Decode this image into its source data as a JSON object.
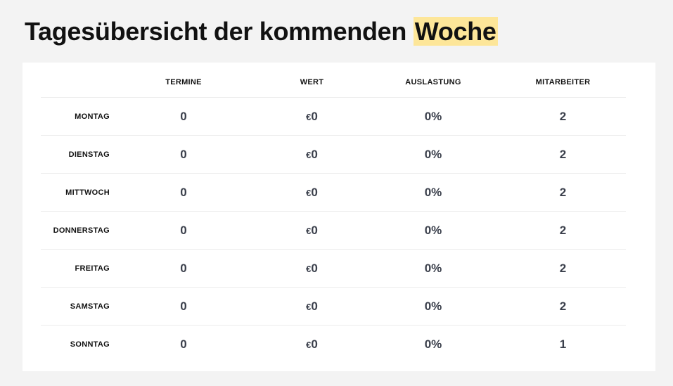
{
  "header": {
    "title_main": "Tagesübersicht der kommenden",
    "title_highlight": "Woche"
  },
  "columns": {
    "termine": "TERMINE",
    "wert": "WERT",
    "auslastung": "AUSLASTUNG",
    "mitarbeiter": "MITARBEITER"
  },
  "currency_symbol": "€",
  "rows": [
    {
      "day": "MONTAG",
      "termine": "0",
      "wert": "0",
      "auslastung": "0%",
      "mitarbeiter": "2"
    },
    {
      "day": "DIENSTAG",
      "termine": "0",
      "wert": "0",
      "auslastung": "0%",
      "mitarbeiter": "2"
    },
    {
      "day": "MITTWOCH",
      "termine": "0",
      "wert": "0",
      "auslastung": "0%",
      "mitarbeiter": "2"
    },
    {
      "day": "DONNERSTAG",
      "termine": "0",
      "wert": "0",
      "auslastung": "0%",
      "mitarbeiter": "2"
    },
    {
      "day": "FREITAG",
      "termine": "0",
      "wert": "0",
      "auslastung": "0%",
      "mitarbeiter": "2"
    },
    {
      "day": "SAMSTAG",
      "termine": "0",
      "wert": "0",
      "auslastung": "0%",
      "mitarbeiter": "2"
    },
    {
      "day": "SONNTAG",
      "termine": "0",
      "wert": "0",
      "auslastung": "0%",
      "mitarbeiter": "1"
    }
  ],
  "colors": {
    "highlight": "#fde699",
    "page_background": "#f3f3f3",
    "card_background": "#ffffff",
    "value_text": "#3a3f4b"
  }
}
